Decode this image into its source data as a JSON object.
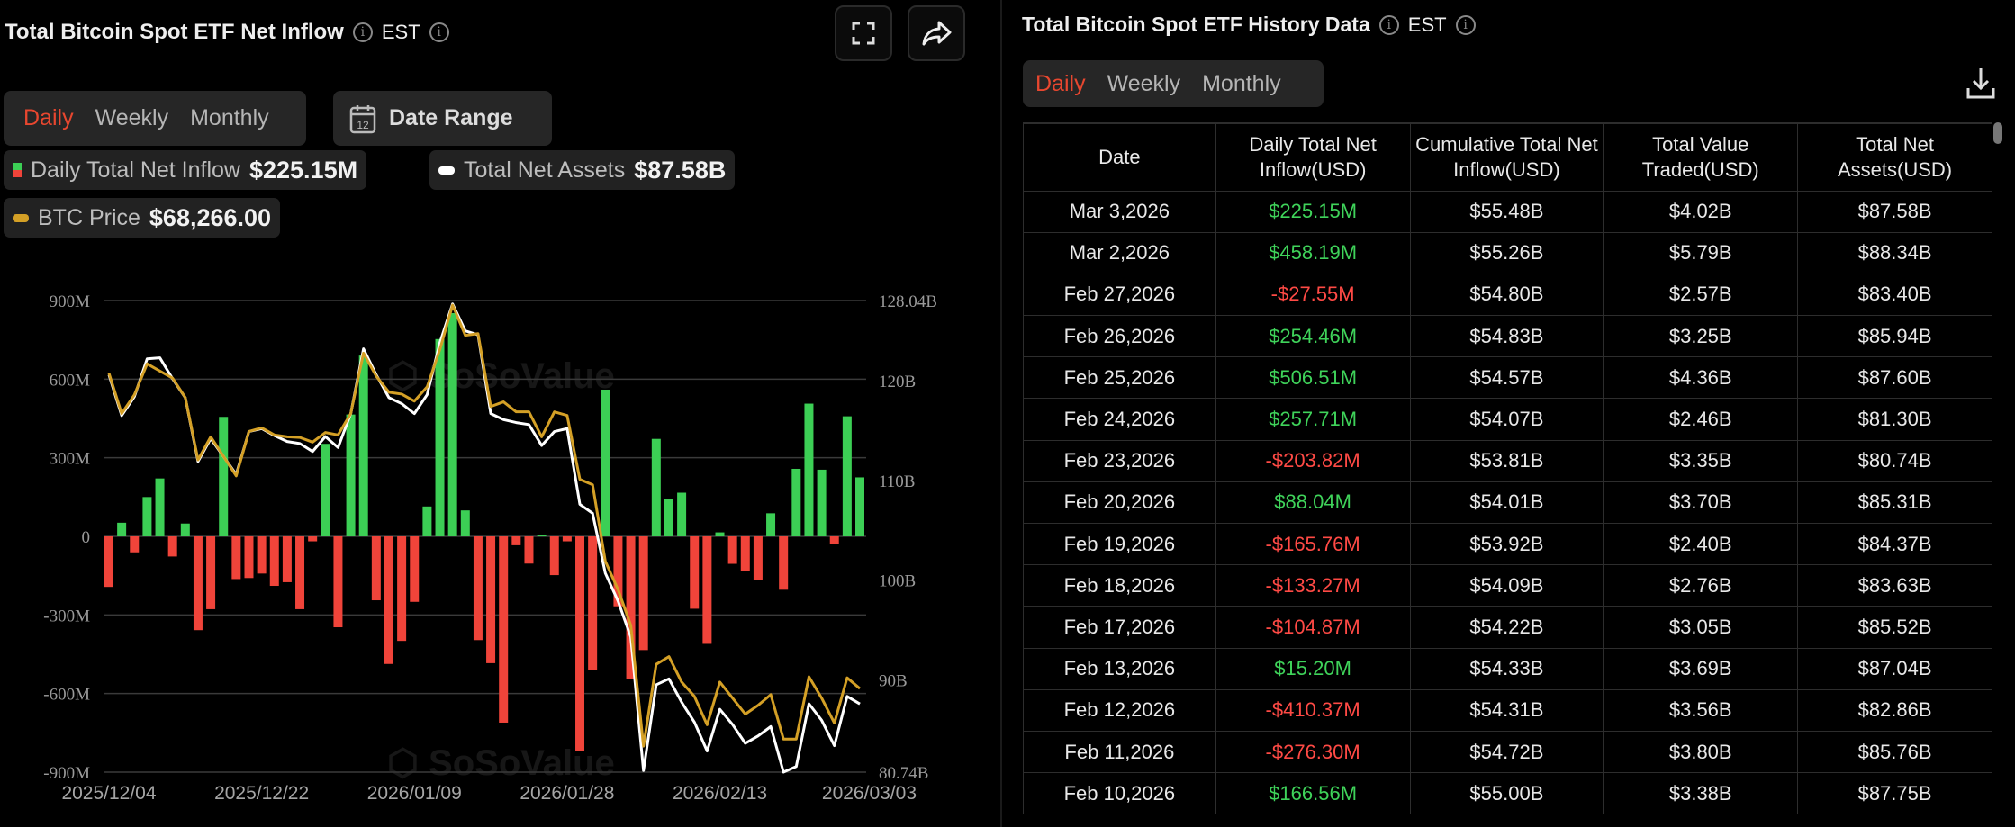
{
  "left_panel": {
    "title": "Total Bitcoin Spot ETF Net Inflow",
    "timezone": "EST",
    "tabs": [
      {
        "label": "Daily",
        "active": true
      },
      {
        "label": "Weekly",
        "active": false
      },
      {
        "label": "Monthly",
        "active": false
      }
    ],
    "date_range_label": "Date Range",
    "calendar_icon_text": "12",
    "legend": [
      {
        "label": "Daily Total Net Inflow",
        "value": "$225.15M"
      },
      {
        "label": "Total Net Assets",
        "value": "$87.58B"
      },
      {
        "label": "BTC Price",
        "value": "$68,266.00"
      }
    ],
    "icons": [
      "fullscreen-icon",
      "share-icon",
      "info-icon",
      "calendar-icon"
    ]
  },
  "watermark": "SoSoValue",
  "colors": {
    "positive": "#3ccf55",
    "negative": "#f0443a",
    "net_assets": "#ffffff",
    "btc_price": "#d4a026",
    "accent": "#e8472f"
  },
  "chart_data": {
    "type": "bar+line",
    "x_tick_labels": [
      "2025/12/04",
      "2025/12/22",
      "2026/01/09",
      "2026/01/28",
      "2026/02/13",
      "2026/03/03"
    ],
    "x_tick_index": [
      0,
      12,
      24,
      36,
      48,
      59
    ],
    "y_left": {
      "ticks": [
        "900M",
        "600M",
        "300M",
        "0",
        "-300M",
        "-600M",
        "-900M"
      ],
      "tick_values": [
        900,
        600,
        300,
        0,
        -300,
        -600,
        -900
      ],
      "lim": [
        -900,
        900
      ],
      "unit": "M USD"
    },
    "y_right": {
      "ticks": [
        "128.04B",
        "120B",
        "110B",
        "100B",
        "90B",
        "80.74B"
      ],
      "tick_values": [
        128.04,
        120,
        110,
        100,
        90,
        80.74
      ],
      "lim": [
        80.74,
        128.04
      ],
      "unit": "B USD"
    },
    "btc_axis_hidden_lim": [
      62000,
      97340
    ],
    "grid": true,
    "legend_placement": "top-left",
    "series": [
      {
        "name": "Daily Total Net Inflow",
        "type": "bar",
        "values": [
          -193,
          52,
          -61,
          150,
          221,
          -77,
          49,
          -358,
          -278,
          456,
          -163,
          -159,
          -142,
          -189,
          -175,
          -278,
          -19,
          353,
          -347,
          465,
          690,
          -244,
          -487,
          -399,
          -250,
          114,
          753,
          852,
          99,
          -396,
          -484,
          -711,
          -34,
          -104,
          5,
          -148,
          -19,
          -819,
          -510,
          560,
          -267,
          -545,
          -434,
          372,
          142,
          166.56,
          -276.3,
          -410.37,
          15.2,
          -104.87,
          -133.27,
          -165.76,
          88.04,
          -203.82,
          257.71,
          506.51,
          254.46,
          -27.55,
          458.19,
          225.15
        ]
      },
      {
        "name": "Total Net Assets",
        "type": "line",
        "values": [
          120.6,
          116.5,
          118.4,
          122.2,
          122.3,
          120.2,
          118.3,
          111.9,
          114.2,
          112.4,
          110.6,
          114.9,
          115.2,
          114.5,
          113.9,
          113.7,
          112.9,
          114.4,
          113.3,
          116.7,
          123.2,
          120.6,
          118.3,
          117.7,
          116.7,
          118.6,
          123.8,
          127.7,
          125.0,
          124.6,
          116.7,
          116.1,
          115.8,
          115.6,
          113.5,
          114.9,
          115.2,
          107.6,
          106.7,
          100.7,
          97.9,
          94.3,
          80.9,
          89.5,
          90.1,
          87.75,
          85.76,
          82.86,
          87.04,
          85.52,
          83.63,
          84.37,
          85.31,
          80.74,
          81.3,
          87.6,
          85.94,
          83.4,
          88.34,
          87.58
        ]
      },
      {
        "name": "BTC Price",
        "type": "line",
        "values": [
          91900,
          88870,
          90280,
          92600,
          92060,
          91530,
          90070,
          85400,
          87130,
          85670,
          84200,
          87530,
          87800,
          87270,
          87130,
          87080,
          86730,
          87450,
          87270,
          88870,
          93400,
          91670,
          90470,
          90330,
          89800,
          90870,
          93660,
          97000,
          94730,
          94860,
          89400,
          89750,
          89000,
          89000,
          87130,
          89000,
          88730,
          83940,
          83540,
          77810,
          75680,
          73010,
          63950,
          70080,
          70660,
          68750,
          67680,
          65550,
          68750,
          67550,
          66350,
          67010,
          67810,
          64480,
          64480,
          69150,
          67550,
          65680,
          69070,
          68266
        ]
      }
    ]
  },
  "right_panel": {
    "title": "Total Bitcoin Spot ETF History Data",
    "timezone": "EST",
    "tabs": [
      {
        "label": "Daily",
        "active": true
      },
      {
        "label": "Weekly",
        "active": false
      },
      {
        "label": "Monthly",
        "active": false
      }
    ],
    "columns": [
      "Date",
      "Daily Total Net Inflow(USD)",
      "Cumulative Total Net Inflow(USD)",
      "Total Value Traded(USD)",
      "Total Net Assets(USD)"
    ],
    "rows": [
      [
        "Mar 3,2026",
        "$225.15M",
        "$55.48B",
        "$4.02B",
        "$87.58B"
      ],
      [
        "Mar 2,2026",
        "$458.19M",
        "$55.26B",
        "$5.79B",
        "$88.34B"
      ],
      [
        "Feb 27,2026",
        "-$27.55M",
        "$54.80B",
        "$2.57B",
        "$83.40B"
      ],
      [
        "Feb 26,2026",
        "$254.46M",
        "$54.83B",
        "$3.25B",
        "$85.94B"
      ],
      [
        "Feb 25,2026",
        "$506.51M",
        "$54.57B",
        "$4.36B",
        "$87.60B"
      ],
      [
        "Feb 24,2026",
        "$257.71M",
        "$54.07B",
        "$2.46B",
        "$81.30B"
      ],
      [
        "Feb 23,2026",
        "-$203.82M",
        "$53.81B",
        "$3.35B",
        "$80.74B"
      ],
      [
        "Feb 20,2026",
        "$88.04M",
        "$54.01B",
        "$3.70B",
        "$85.31B"
      ],
      [
        "Feb 19,2026",
        "-$165.76M",
        "$53.92B",
        "$2.40B",
        "$84.37B"
      ],
      [
        "Feb 18,2026",
        "-$133.27M",
        "$54.09B",
        "$2.76B",
        "$83.63B"
      ],
      [
        "Feb 17,2026",
        "-$104.87M",
        "$54.22B",
        "$3.05B",
        "$85.52B"
      ],
      [
        "Feb 13,2026",
        "$15.20M",
        "$54.33B",
        "$3.69B",
        "$87.04B"
      ],
      [
        "Feb 12,2026",
        "-$410.37M",
        "$54.31B",
        "$3.56B",
        "$82.86B"
      ],
      [
        "Feb 11,2026",
        "-$276.30M",
        "$54.72B",
        "$3.80B",
        "$85.76B"
      ],
      [
        "Feb 10,2026",
        "$166.56M",
        "$55.00B",
        "$3.38B",
        "$87.75B"
      ]
    ],
    "icons": [
      "download-icon",
      "info-icon"
    ]
  }
}
